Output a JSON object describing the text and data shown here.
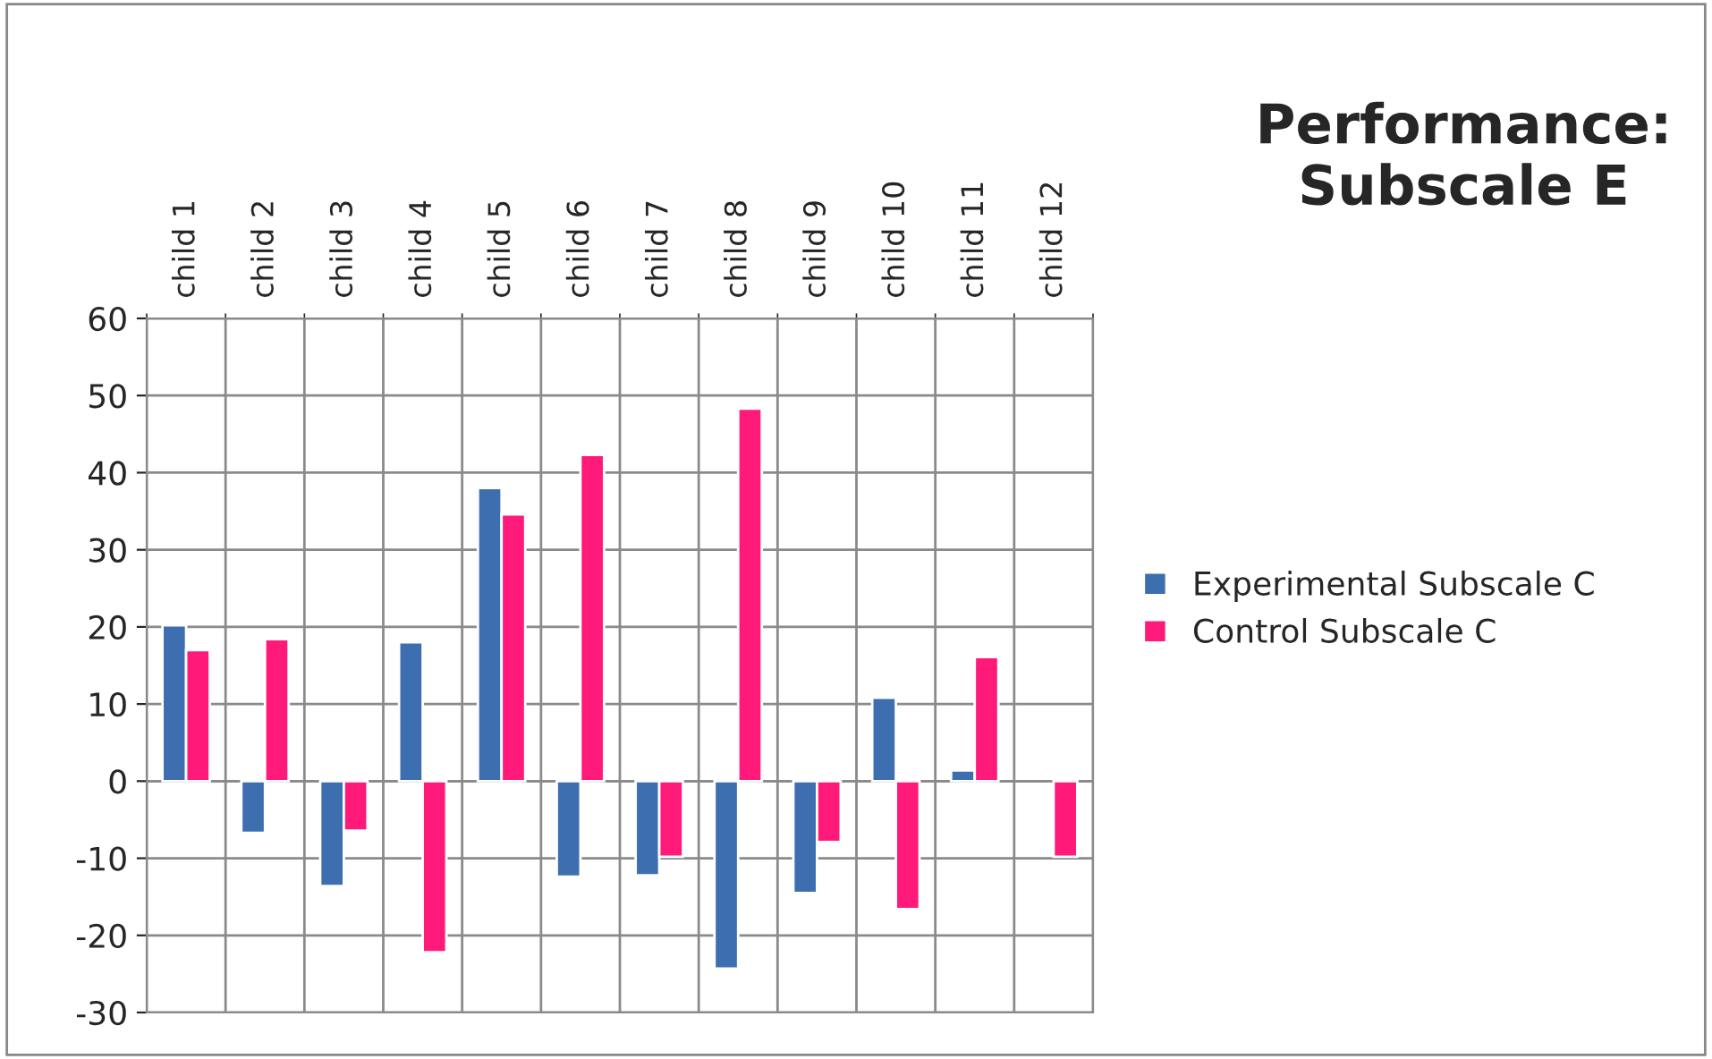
{
  "chart_data": {
    "type": "bar",
    "title": "Performance:\nSubscale E",
    "categories": [
      "child 1",
      "child 2",
      "child 3",
      "child 4",
      "child 5",
      "child 6",
      "child 7",
      "child 8",
      "child 9",
      "child 10",
      "child 11",
      "child 12"
    ],
    "series": [
      {
        "name": "Experimental Subscale C",
        "color": "#3d6fb0",
        "values": [
          20.2,
          -6.7,
          -13.6,
          18,
          38,
          -12.4,
          -12.2,
          -24.3,
          -14.5,
          10.8,
          1.4,
          null
        ]
      },
      {
        "name": "Control Subscale C",
        "color": "#ff1a7a",
        "values": [
          17,
          18.4,
          -6.4,
          -22.2,
          34.6,
          42.3,
          -9.8,
          48.3,
          -7.9,
          -16.6,
          16.1,
          -9.8
        ]
      }
    ],
    "ylim": [
      -30,
      60
    ],
    "yticks": [
      -30,
      -20,
      -10,
      0,
      10,
      20,
      30,
      40,
      50,
      60
    ],
    "grid": true,
    "legend": "right"
  }
}
